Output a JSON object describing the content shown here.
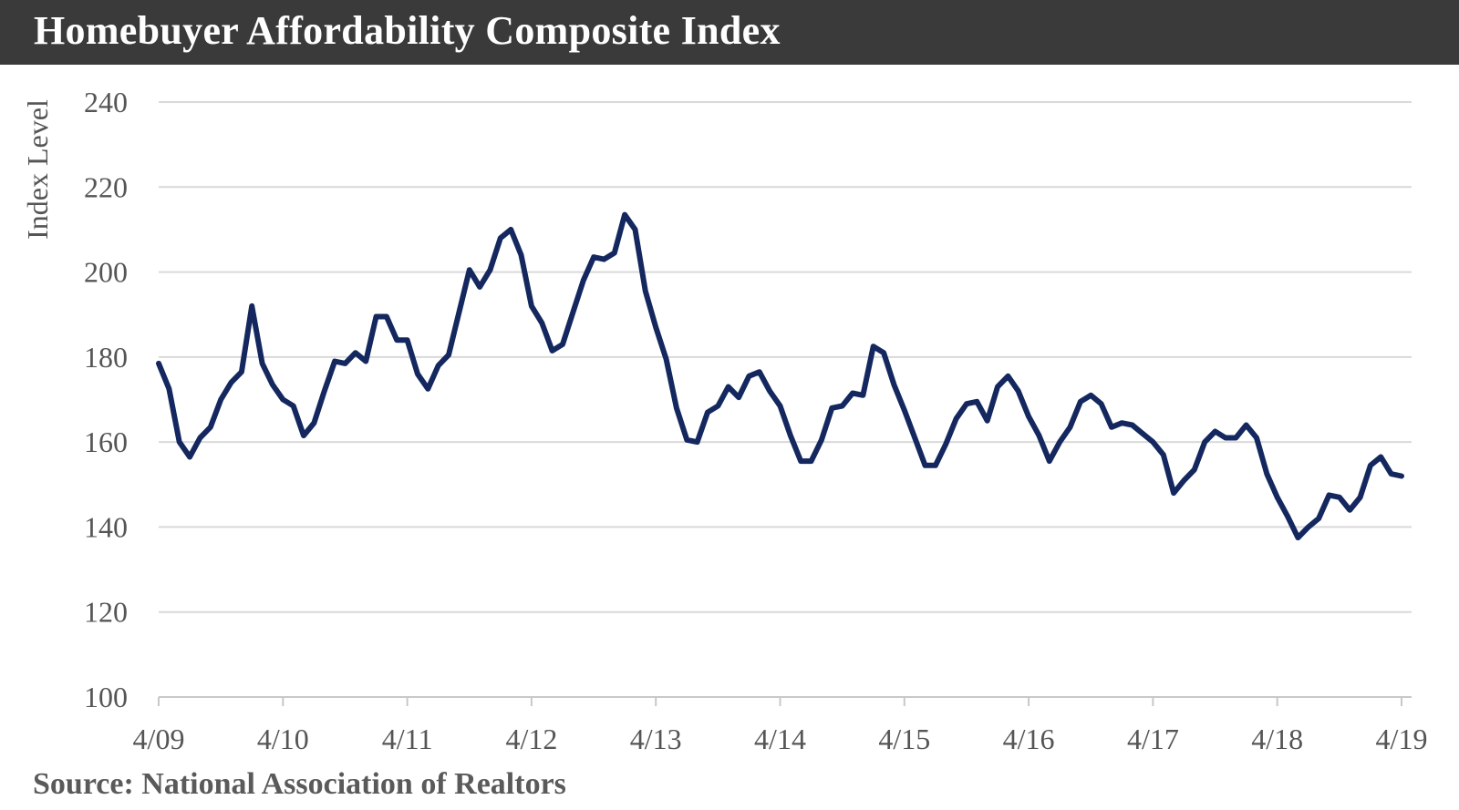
{
  "chart_data": {
    "type": "line",
    "title": "Homebuyer Affordability Composite Index",
    "ylabel": "Index Level",
    "xlabel": "",
    "ylim": [
      100,
      240
    ],
    "yticks": [
      100,
      120,
      140,
      160,
      180,
      200,
      220,
      240
    ],
    "xticks": [
      "4/09",
      "4/10",
      "4/11",
      "4/12",
      "4/13",
      "4/14",
      "4/15",
      "4/16",
      "4/17",
      "4/18",
      "4/19"
    ],
    "grid": true,
    "line_color": "#14285f",
    "series": [
      {
        "values": [
          178.5,
          172.5,
          160.0,
          156.5,
          161.0,
          163.5,
          170.0,
          174.0,
          176.5,
          192.0,
          178.5,
          173.5,
          170.0,
          168.5,
          161.5,
          164.5,
          172.0,
          179.0,
          178.5,
          181.0,
          179.0,
          189.5,
          189.5,
          184.0,
          184.0,
          176.0,
          172.5,
          178.0,
          180.5,
          190.5,
          200.5,
          196.5,
          200.5,
          208.0,
          210.0,
          204.0,
          192.0,
          188.0,
          181.5,
          183.0,
          190.5,
          198.0,
          203.5,
          203.0,
          204.5,
          213.5,
          210.0,
          195.5,
          187.0,
          179.5,
          168.0,
          160.5,
          160.0,
          167.0,
          168.5,
          173.0,
          170.5,
          175.5,
          176.5,
          172.0,
          168.5,
          161.5,
          155.5,
          155.5,
          160.5,
          168.0,
          168.5,
          171.5,
          171.0,
          182.5,
          181.0,
          173.5,
          167.5,
          161.0,
          154.5,
          154.5,
          159.5,
          165.5,
          169.0,
          169.5,
          165.0,
          173.0,
          175.5,
          172.0,
          166.0,
          161.5,
          155.5,
          160.0,
          163.5,
          169.5,
          171.0,
          169.0,
          163.5,
          164.5,
          164.0,
          162.0,
          160.0,
          157.0,
          148.0,
          151.0,
          153.5,
          160.0,
          162.5,
          161.0,
          161.0,
          164.0,
          161.0,
          152.5,
          147.0,
          142.5,
          137.5,
          140.0,
          142.0,
          147.5,
          147.0,
          144.0,
          147.0,
          154.5,
          156.5,
          152.5,
          152.0
        ]
      }
    ]
  },
  "source": "Source:  National Association of Realtors"
}
